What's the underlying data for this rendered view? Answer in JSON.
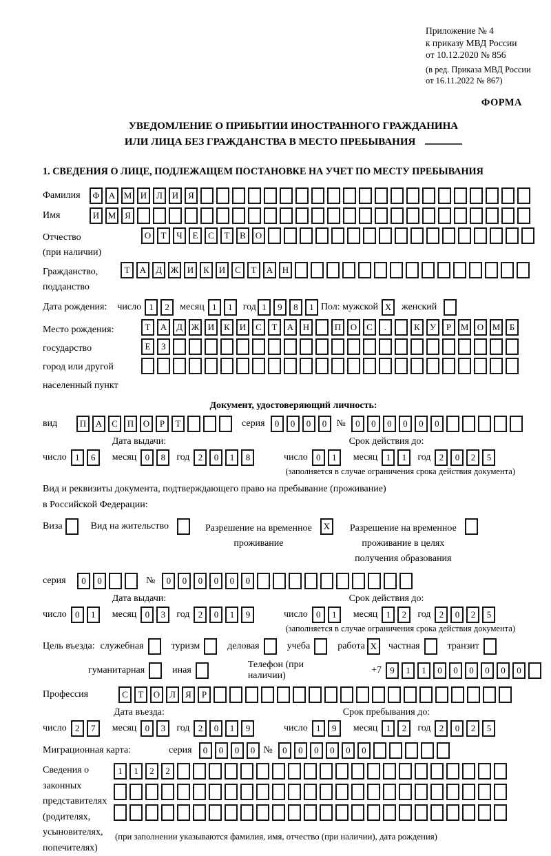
{
  "header": {
    "ref_lines": [
      "Приложение № 4",
      "к приказу МВД России",
      "от 10.12.2020 № 856"
    ],
    "ref_sub_lines": [
      "(в ред. Приказа МВД России",
      "от 16.11.2022 № 867)"
    ],
    "forma": "ФОРМА"
  },
  "title": {
    "line1": "УВЕДОМЛЕНИЕ О ПРИБЫТИИ ИНОСТРАННОГО ГРАЖДАНИНА",
    "line2": "ИЛИ ЛИЦА БЕЗ ГРАЖДАНСТВА В МЕСТО ПРЕБЫВАНИЯ"
  },
  "section1_title": "1. СВЕДЕНИЯ О ЛИЦЕ, ПОДЛЕЖАЩЕМ ПОСТАНОВКЕ НА УЧЕТ ПО МЕСТУ ПРЕБЫВАНИЯ",
  "common": {
    "day": "число",
    "month": "месяц",
    "year": "год",
    "series": "серия",
    "number": "№",
    "issue_date": "Дата выдачи:",
    "valid_until": "Срок действия до:",
    "limited_note": "(заполняется в случае ограничения срока действия документа)"
  },
  "person": {
    "surname": {
      "label": "Фамилия",
      "value": "ФАМИЛИЯ",
      "length_boxes": 28
    },
    "name": {
      "label": "Имя",
      "value": "ИМЯ",
      "length_boxes": 28
    },
    "patronymic": {
      "label": "Отчество",
      "label2": "(при наличии)",
      "value": "ОТЧЕСТВО",
      "length_boxes": 25
    },
    "citizenship": {
      "label": "Гражданство,",
      "label2": "подданство",
      "value": "ТАДЖИКИСТАН",
      "length_boxes": 26
    },
    "birth_date": {
      "label": "Дата рождения:",
      "day": "12",
      "month": "11",
      "year": "1981"
    },
    "sex": {
      "label_male": "Пол: мужской",
      "male": "X",
      "label_female": "женский",
      "female": " "
    },
    "birth_place": {
      "label": "Место рождения:",
      "sub_labels": [
        "государство",
        "город или другой",
        "населенный пункт"
      ],
      "rows": [
        {
          "value": "ТАДЖИКИСТАН ПОС. КУРМОМБ",
          "length_boxes": 24
        },
        {
          "value": "ЕЗ",
          "length_boxes": 24
        },
        {
          "value": "",
          "length_boxes": 24
        }
      ]
    }
  },
  "id_doc": {
    "header": "Документ, удостоверяющий личность:",
    "vid_label": "вид",
    "vid": {
      "value": "ПАСПОРТ",
      "length_boxes": 10
    },
    "series": {
      "value": "0000",
      "length_boxes": 4
    },
    "number": {
      "value": "000000",
      "length_boxes": 11
    },
    "issue": {
      "day": "16",
      "month": "08",
      "year": "2018"
    },
    "valid": {
      "day": "01",
      "month": "11",
      "year": "2025"
    }
  },
  "stay_doc": {
    "intro1": "Вид и реквизиты документа, подтверждающего право на пребывание (проживание)",
    "intro2": "в Российской Федерации:",
    "visa": {
      "label": "Виза",
      "box": " "
    },
    "residence": {
      "label": "Вид на жительство",
      "box": " "
    },
    "temp": {
      "line1": "Разрешение на временное",
      "line2": "проживание",
      "box": "X"
    },
    "temp_edu": {
      "line1": "Разрешение на временное",
      "line2": "проживание в целях",
      "line3": "получения образования",
      "box": " "
    },
    "series": {
      "value": "00",
      "length_boxes": 4
    },
    "number": {
      "value": "000000",
      "length_boxes": 16
    },
    "issue": {
      "day": "01",
      "month": "03",
      "year": "2019"
    },
    "valid": {
      "day": "01",
      "month": "12",
      "year": "2025"
    }
  },
  "purpose": {
    "label": "Цель въезда:",
    "options": [
      {
        "label": "служебная",
        "box": " "
      },
      {
        "label": "туризм",
        "box": " "
      },
      {
        "label": "деловая",
        "box": " "
      },
      {
        "label": "учеба",
        "box": " "
      },
      {
        "label": "работа",
        "box": "X"
      },
      {
        "label": "частная",
        "box": " "
      },
      {
        "label": "транзит",
        "box": " "
      }
    ],
    "options2": [
      {
        "label": "гуманитарная",
        "box": " "
      },
      {
        "label": "иная",
        "box": " "
      }
    ],
    "phone_label": "Телефон (при наличии)",
    "phone_prefix": "+7",
    "phone": {
      "value": "911000000",
      "length_boxes": 10
    }
  },
  "profession": {
    "label": "Профессия",
    "value": "СТОЛЯР",
    "length_boxes": 25
  },
  "entry": {
    "entry_date_label": "Дата въезда:",
    "stay_until_label": "Срок пребывания до:",
    "entry_date": {
      "day": "27",
      "month": "03",
      "year": "2019"
    },
    "stay_until": {
      "day": "19",
      "month": "12",
      "year": "2025"
    }
  },
  "migration_card": {
    "label": "Миграционная карта:",
    "series": {
      "value": "0000",
      "length_boxes": 4
    },
    "number": {
      "value": "000000",
      "length_boxes": 11
    }
  },
  "legal_reps": {
    "label_lines": [
      "Сведения о",
      "законных",
      "представителях",
      "(родителях,",
      "усыновителях,",
      "попечителях)"
    ],
    "rows": [
      {
        "value": "1122",
        "length_boxes": 25
      },
      {
        "value": "",
        "length_boxes": 25
      },
      {
        "value": "",
        "length_boxes": 25
      }
    ],
    "note": "(при заполнении указываются фамилия, имя, отчество (при наличии), дата рождения)"
  }
}
